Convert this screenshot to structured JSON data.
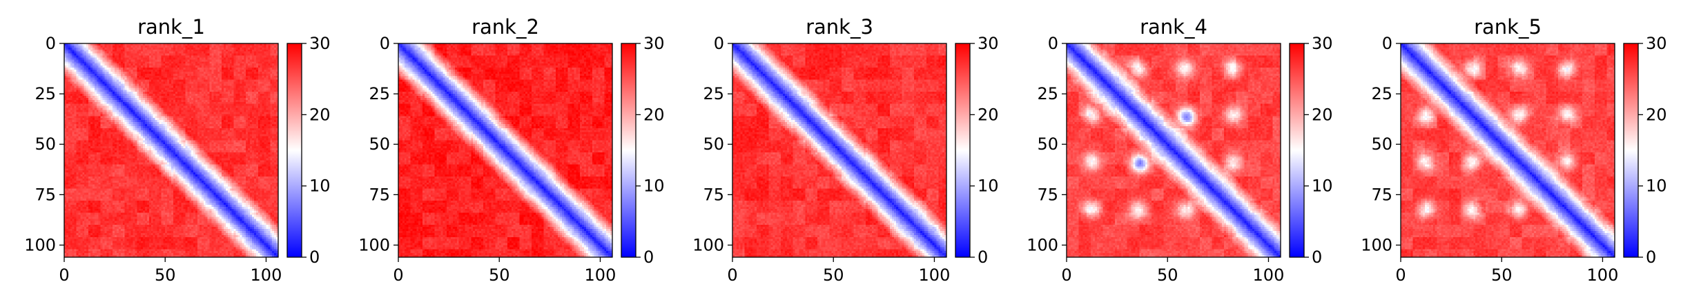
{
  "chart_data": [
    {
      "type": "heatmap",
      "title": "rank_1",
      "matrix_size": 106,
      "x_ticks": [
        0,
        50,
        100
      ],
      "y_ticks": [
        0,
        25,
        50,
        75,
        100
      ],
      "xlim": [
        0,
        106
      ],
      "ylim": [
        106,
        0
      ],
      "colorbar": {
        "min": 0,
        "max": 30,
        "ticks": [
          0,
          10,
          20,
          30
        ],
        "colormap": "bwr"
      },
      "pattern": {
        "diagonal_band_width": 7,
        "off_diagonal_value": 27,
        "hotspots": []
      }
    },
    {
      "type": "heatmap",
      "title": "rank_2",
      "matrix_size": 106,
      "x_ticks": [
        0,
        50,
        100
      ],
      "y_ticks": [
        0,
        25,
        50,
        75,
        100
      ],
      "xlim": [
        0,
        106
      ],
      "ylim": [
        106,
        0
      ],
      "colorbar": {
        "min": 0,
        "max": 30,
        "ticks": [
          0,
          10,
          20,
          30
        ],
        "colormap": "bwr"
      },
      "pattern": {
        "diagonal_band_width": 7,
        "off_diagonal_value": 28,
        "hotspots": []
      }
    },
    {
      "type": "heatmap",
      "title": "rank_3",
      "matrix_size": 106,
      "x_ticks": [
        0,
        50,
        100
      ],
      "y_ticks": [
        0,
        25,
        50,
        75,
        100
      ],
      "xlim": [
        0,
        106
      ],
      "ylim": [
        106,
        0
      ],
      "colorbar": {
        "min": 0,
        "max": 30,
        "ticks": [
          0,
          10,
          20,
          30
        ],
        "colormap": "bwr"
      },
      "pattern": {
        "diagonal_band_width": 7,
        "off_diagonal_value": 27,
        "hotspots": []
      }
    },
    {
      "type": "heatmap",
      "title": "rank_4",
      "matrix_size": 106,
      "x_ticks": [
        0,
        50,
        100
      ],
      "y_ticks": [
        0,
        25,
        50,
        75,
        100
      ],
      "xlim": [
        0,
        106
      ],
      "ylim": [
        106,
        0
      ],
      "colorbar": {
        "min": 0,
        "max": 30,
        "ticks": [
          0,
          10,
          20,
          30
        ],
        "colormap": "bwr"
      },
      "pattern": {
        "diagonal_band_width": 7,
        "off_diagonal_value": 26,
        "hotspots": [
          [
            12,
            35
          ],
          [
            35,
            12
          ],
          [
            12,
            58
          ],
          [
            58,
            12
          ],
          [
            35,
            58
          ],
          [
            58,
            35
          ],
          [
            35,
            82
          ],
          [
            82,
            35
          ],
          [
            58,
            82
          ],
          [
            82,
            58
          ],
          [
            12,
            82
          ],
          [
            82,
            12
          ],
          [
            60,
            37
          ],
          [
            37,
            60
          ]
        ]
      }
    },
    {
      "type": "heatmap",
      "title": "rank_5",
      "matrix_size": 106,
      "x_ticks": [
        0,
        50,
        100
      ],
      "y_ticks": [
        0,
        25,
        50,
        75,
        100
      ],
      "xlim": [
        0,
        106
      ],
      "ylim": [
        106,
        0
      ],
      "colorbar": {
        "min": 0,
        "max": 30,
        "ticks": [
          0,
          10,
          20,
          30
        ],
        "colormap": "bwr"
      },
      "pattern": {
        "diagonal_band_width": 7,
        "off_diagonal_value": 26,
        "hotspots": [
          [
            12,
            35
          ],
          [
            35,
            12
          ],
          [
            12,
            58
          ],
          [
            58,
            12
          ],
          [
            35,
            58
          ],
          [
            58,
            35
          ],
          [
            35,
            82
          ],
          [
            82,
            35
          ],
          [
            58,
            82
          ],
          [
            82,
            58
          ],
          [
            12,
            82
          ],
          [
            82,
            12
          ]
        ]
      }
    }
  ]
}
